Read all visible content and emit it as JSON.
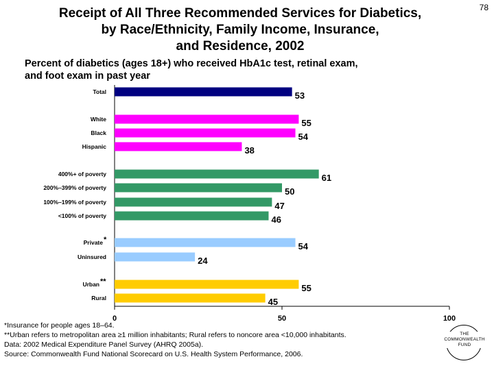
{
  "page_number": "78",
  "title_lines": [
    "Receipt of All Three Recommended Services for Diabetics,",
    "by Race/Ethnicity, Family Income, Insurance,",
    "and Residence, 2002"
  ],
  "subtitle_lines": [
    "Percent of diabetics (ages 18+) who received HbA1c test, retinal exam,",
    "and foot exam in past year"
  ],
  "chart_data": {
    "type": "bar",
    "orientation": "horizontal",
    "categories": [
      "Total",
      "White",
      "Black",
      "Hispanic",
      "400%+ of poverty",
      "200%–399% of poverty",
      "100%–199% of poverty",
      "<100% of poverty",
      "Private",
      "Uninsured",
      "Urban",
      "Rural"
    ],
    "category_markers": [
      "",
      "",
      "",
      "",
      "",
      "",
      "",
      "",
      "*",
      "",
      "**",
      ""
    ],
    "values": [
      53,
      55,
      54,
      38,
      61,
      50,
      47,
      46,
      54,
      24,
      55,
      45
    ],
    "groups": [
      {
        "members": [
          0
        ],
        "color": "#000080"
      },
      {
        "members": [
          1,
          2,
          3
        ],
        "color": "#ff00ff"
      },
      {
        "members": [
          4,
          5,
          6,
          7
        ],
        "color": "#339966"
      },
      {
        "members": [
          8,
          9
        ],
        "color": "#99ccff"
      },
      {
        "members": [
          10,
          11
        ],
        "color": "#ffcc00"
      }
    ],
    "xlim": [
      0,
      100
    ],
    "x_ticks": [
      0,
      50,
      100
    ],
    "grid": false,
    "legend": "none"
  },
  "footnotes": [
    "*Insurance for people ages 18–64.",
    "**Urban refers to metropolitan area ≥1 million inhabitants; Rural refers to noncore area <10,000 inhabitants.",
    "Data: 2002 Medical Expenditure Panel Survey (AHRQ 2005a).",
    "Source: Commonwealth Fund National Scorecard on U.S. Health System Performance, 2006."
  ],
  "logo_lines": [
    "THE",
    "COMMONWEALTH",
    "FUND"
  ]
}
